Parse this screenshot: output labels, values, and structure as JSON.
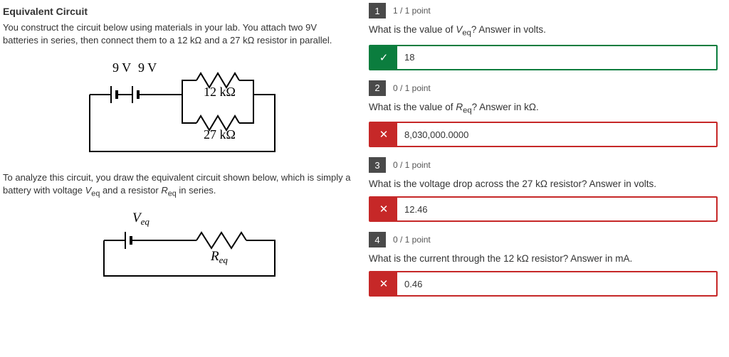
{
  "left": {
    "title": "Equivalent Circuit",
    "p1": "You construct the circuit below using materials in your lab. You attach two 9V batteries in series, then connect them to a 12 kΩ and a 27 kΩ resistor in parallel.",
    "p2": "To analyze this circuit, you draw the equivalent circuit shown below, which is simply a battery with voltage V_eq and a resistor R_eq in series.",
    "d1": {
      "b1": "9 V",
      "b2": "9 V",
      "r1": "12 kΩ",
      "r2": "27 kΩ"
    },
    "d2": {
      "v": "V",
      "vsub": "eq",
      "r": "R",
      "rsub": "eq"
    }
  },
  "questions": [
    {
      "num": "1",
      "pts": "1 / 1 point",
      "prompt_pre": "What is the value of ",
      "var": "V",
      "sub": "eq",
      "prompt_post": "? Answer in volts.",
      "status": "correct",
      "mark": "✓",
      "value": "18"
    },
    {
      "num": "2",
      "pts": "0 / 1 point",
      "prompt_pre": "What is the value of ",
      "var": "R",
      "sub": "eq",
      "prompt_post": "? Answer in kΩ.",
      "status": "incorrect",
      "mark": "✕",
      "value": "8,030,000.0000"
    },
    {
      "num": "3",
      "pts": "0 / 1 point",
      "prompt_pre": "What is the voltage drop across the 27 kΩ resistor? Answer in volts.",
      "var": "",
      "sub": "",
      "prompt_post": "",
      "status": "incorrect",
      "mark": "✕",
      "value": "12.46"
    },
    {
      "num": "4",
      "pts": "0 / 1 point",
      "prompt_pre": "What is the current through the 12 kΩ resistor? Answer in mA.",
      "var": "",
      "sub": "",
      "prompt_post": "",
      "status": "incorrect",
      "mark": "✕",
      "value": "0.46"
    }
  ]
}
